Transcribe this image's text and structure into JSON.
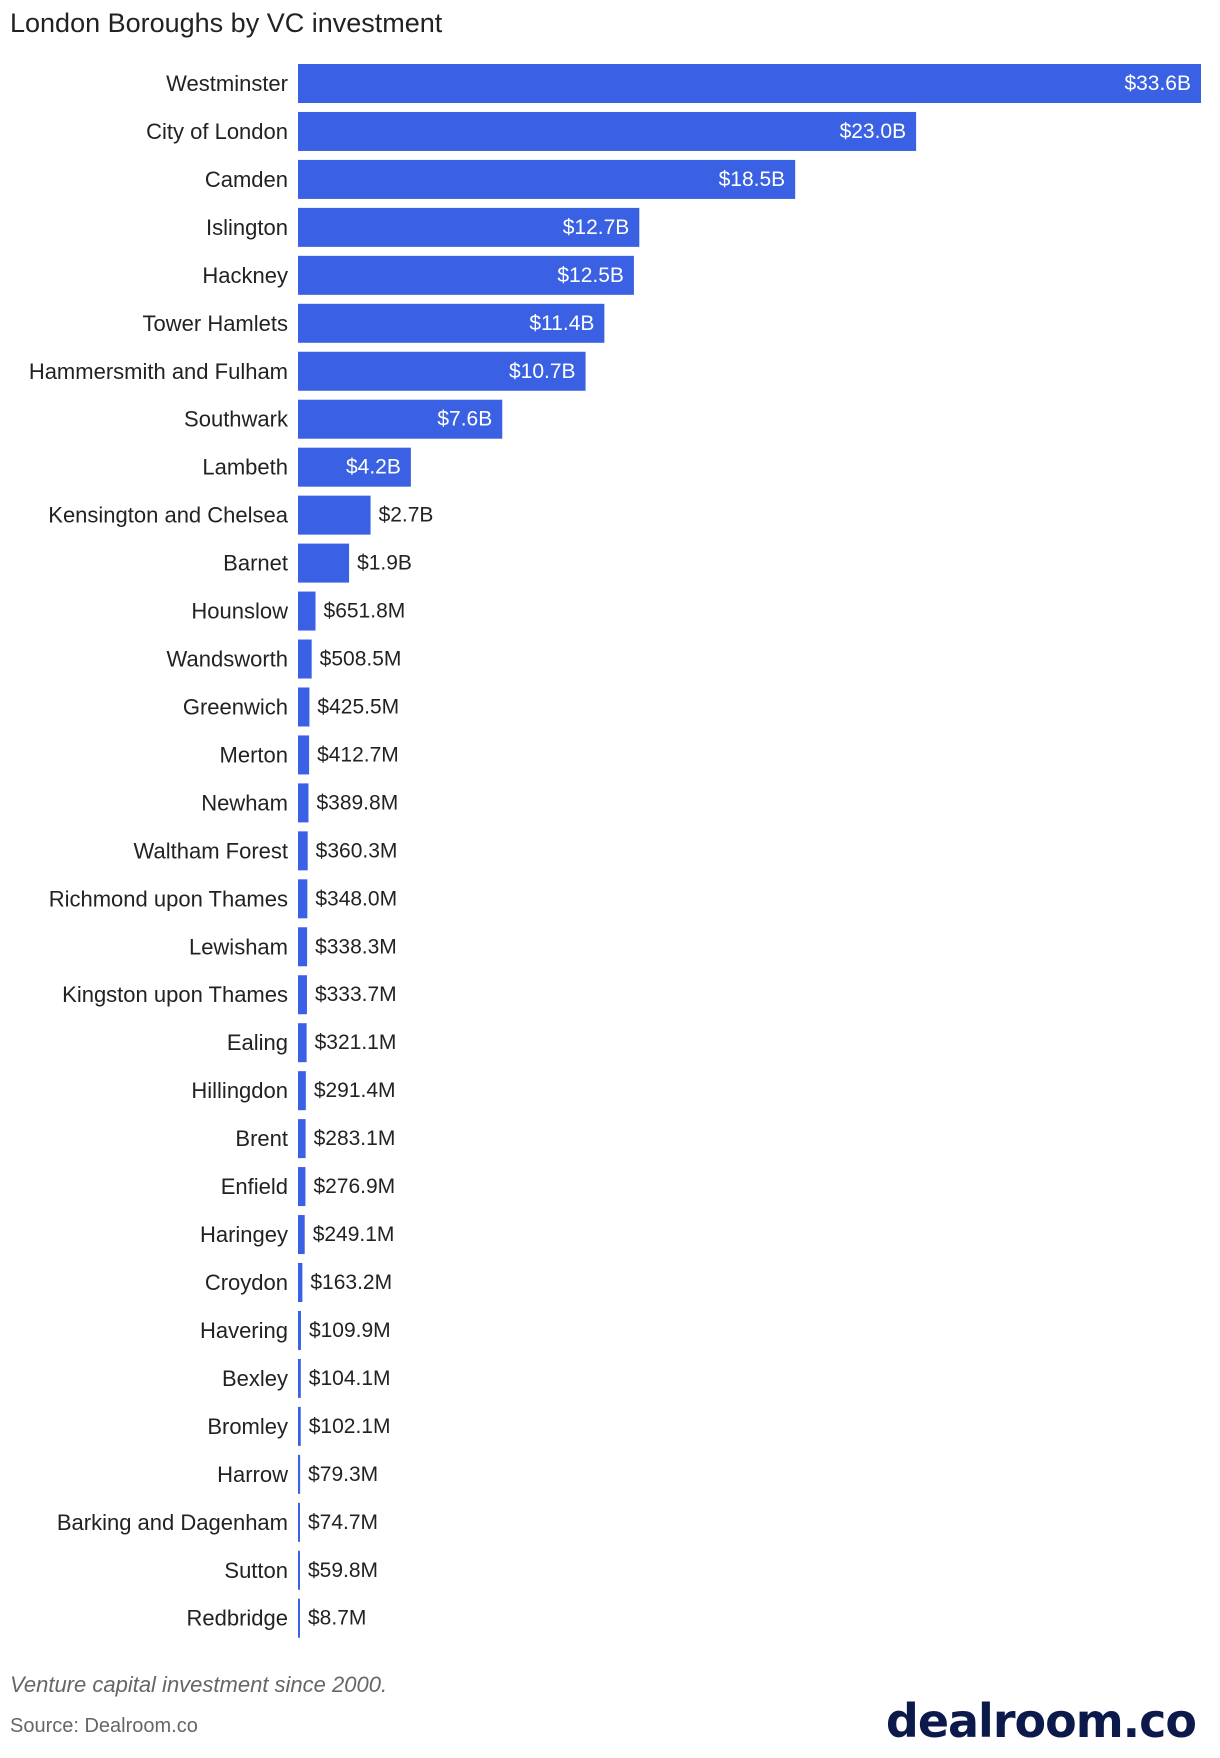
{
  "header": {
    "title": "London Boroughs by VC investment"
  },
  "footer": {
    "note": "Venture capital investment since 2000.",
    "source": "Source: Dealroom.co",
    "logo_text": "dealroom.co"
  },
  "colors": {
    "bar": "#3a61e3",
    "inside_label": "#ffffff",
    "outside_label": "#222222"
  },
  "chart_data": {
    "type": "bar",
    "orientation": "horizontal",
    "title": "London Boroughs by VC investment",
    "unit": "USD",
    "categories": [
      "Westminster",
      "City of London",
      "Camden",
      "Islington",
      "Hackney",
      "Tower Hamlets",
      "Hammersmith and Fulham",
      "Southwark",
      "Lambeth",
      "Kensington and Chelsea",
      "Barnet",
      "Hounslow",
      "Wandsworth",
      "Greenwich",
      "Merton",
      "Newham",
      "Waltham Forest",
      "Richmond upon Thames",
      "Lewisham",
      "Kingston upon Thames",
      "Ealing",
      "Hillingdon",
      "Brent",
      "Enfield",
      "Haringey",
      "Croydon",
      "Havering",
      "Bexley",
      "Bromley",
      "Harrow",
      "Barking and Dagenham",
      "Sutton",
      "Redbridge"
    ],
    "values": [
      33600,
      23000,
      18500,
      12700,
      12500,
      11400,
      10700,
      7600,
      4200,
      2700,
      1900,
      651.8,
      508.5,
      425.5,
      412.7,
      389.8,
      360.3,
      348.0,
      338.3,
      333.7,
      321.1,
      291.4,
      283.1,
      276.9,
      249.1,
      163.2,
      109.9,
      104.1,
      102.1,
      79.3,
      74.7,
      59.8,
      8.7
    ],
    "value_unit": "USD millions",
    "labels": [
      "$33.6B",
      "$23.0B",
      "$18.5B",
      "$12.7B",
      "$12.5B",
      "$11.4B",
      "$10.7B",
      "$7.6B",
      "$4.2B",
      "$2.7B",
      "$1.9B",
      "$651.8M",
      "$508.5M",
      "$425.5M",
      "$412.7M",
      "$389.8M",
      "$360.3M",
      "$348.0M",
      "$338.3M",
      "$333.7M",
      "$321.1M",
      "$291.4M",
      "$283.1M",
      "$276.9M",
      "$249.1M",
      "$163.2M",
      "$109.9M",
      "$104.1M",
      "$102.1M",
      "$79.3M",
      "$74.7M",
      "$59.8M",
      "$8.7M"
    ],
    "xlim": [
      0,
      33600
    ],
    "grid": false,
    "legend": "none"
  }
}
